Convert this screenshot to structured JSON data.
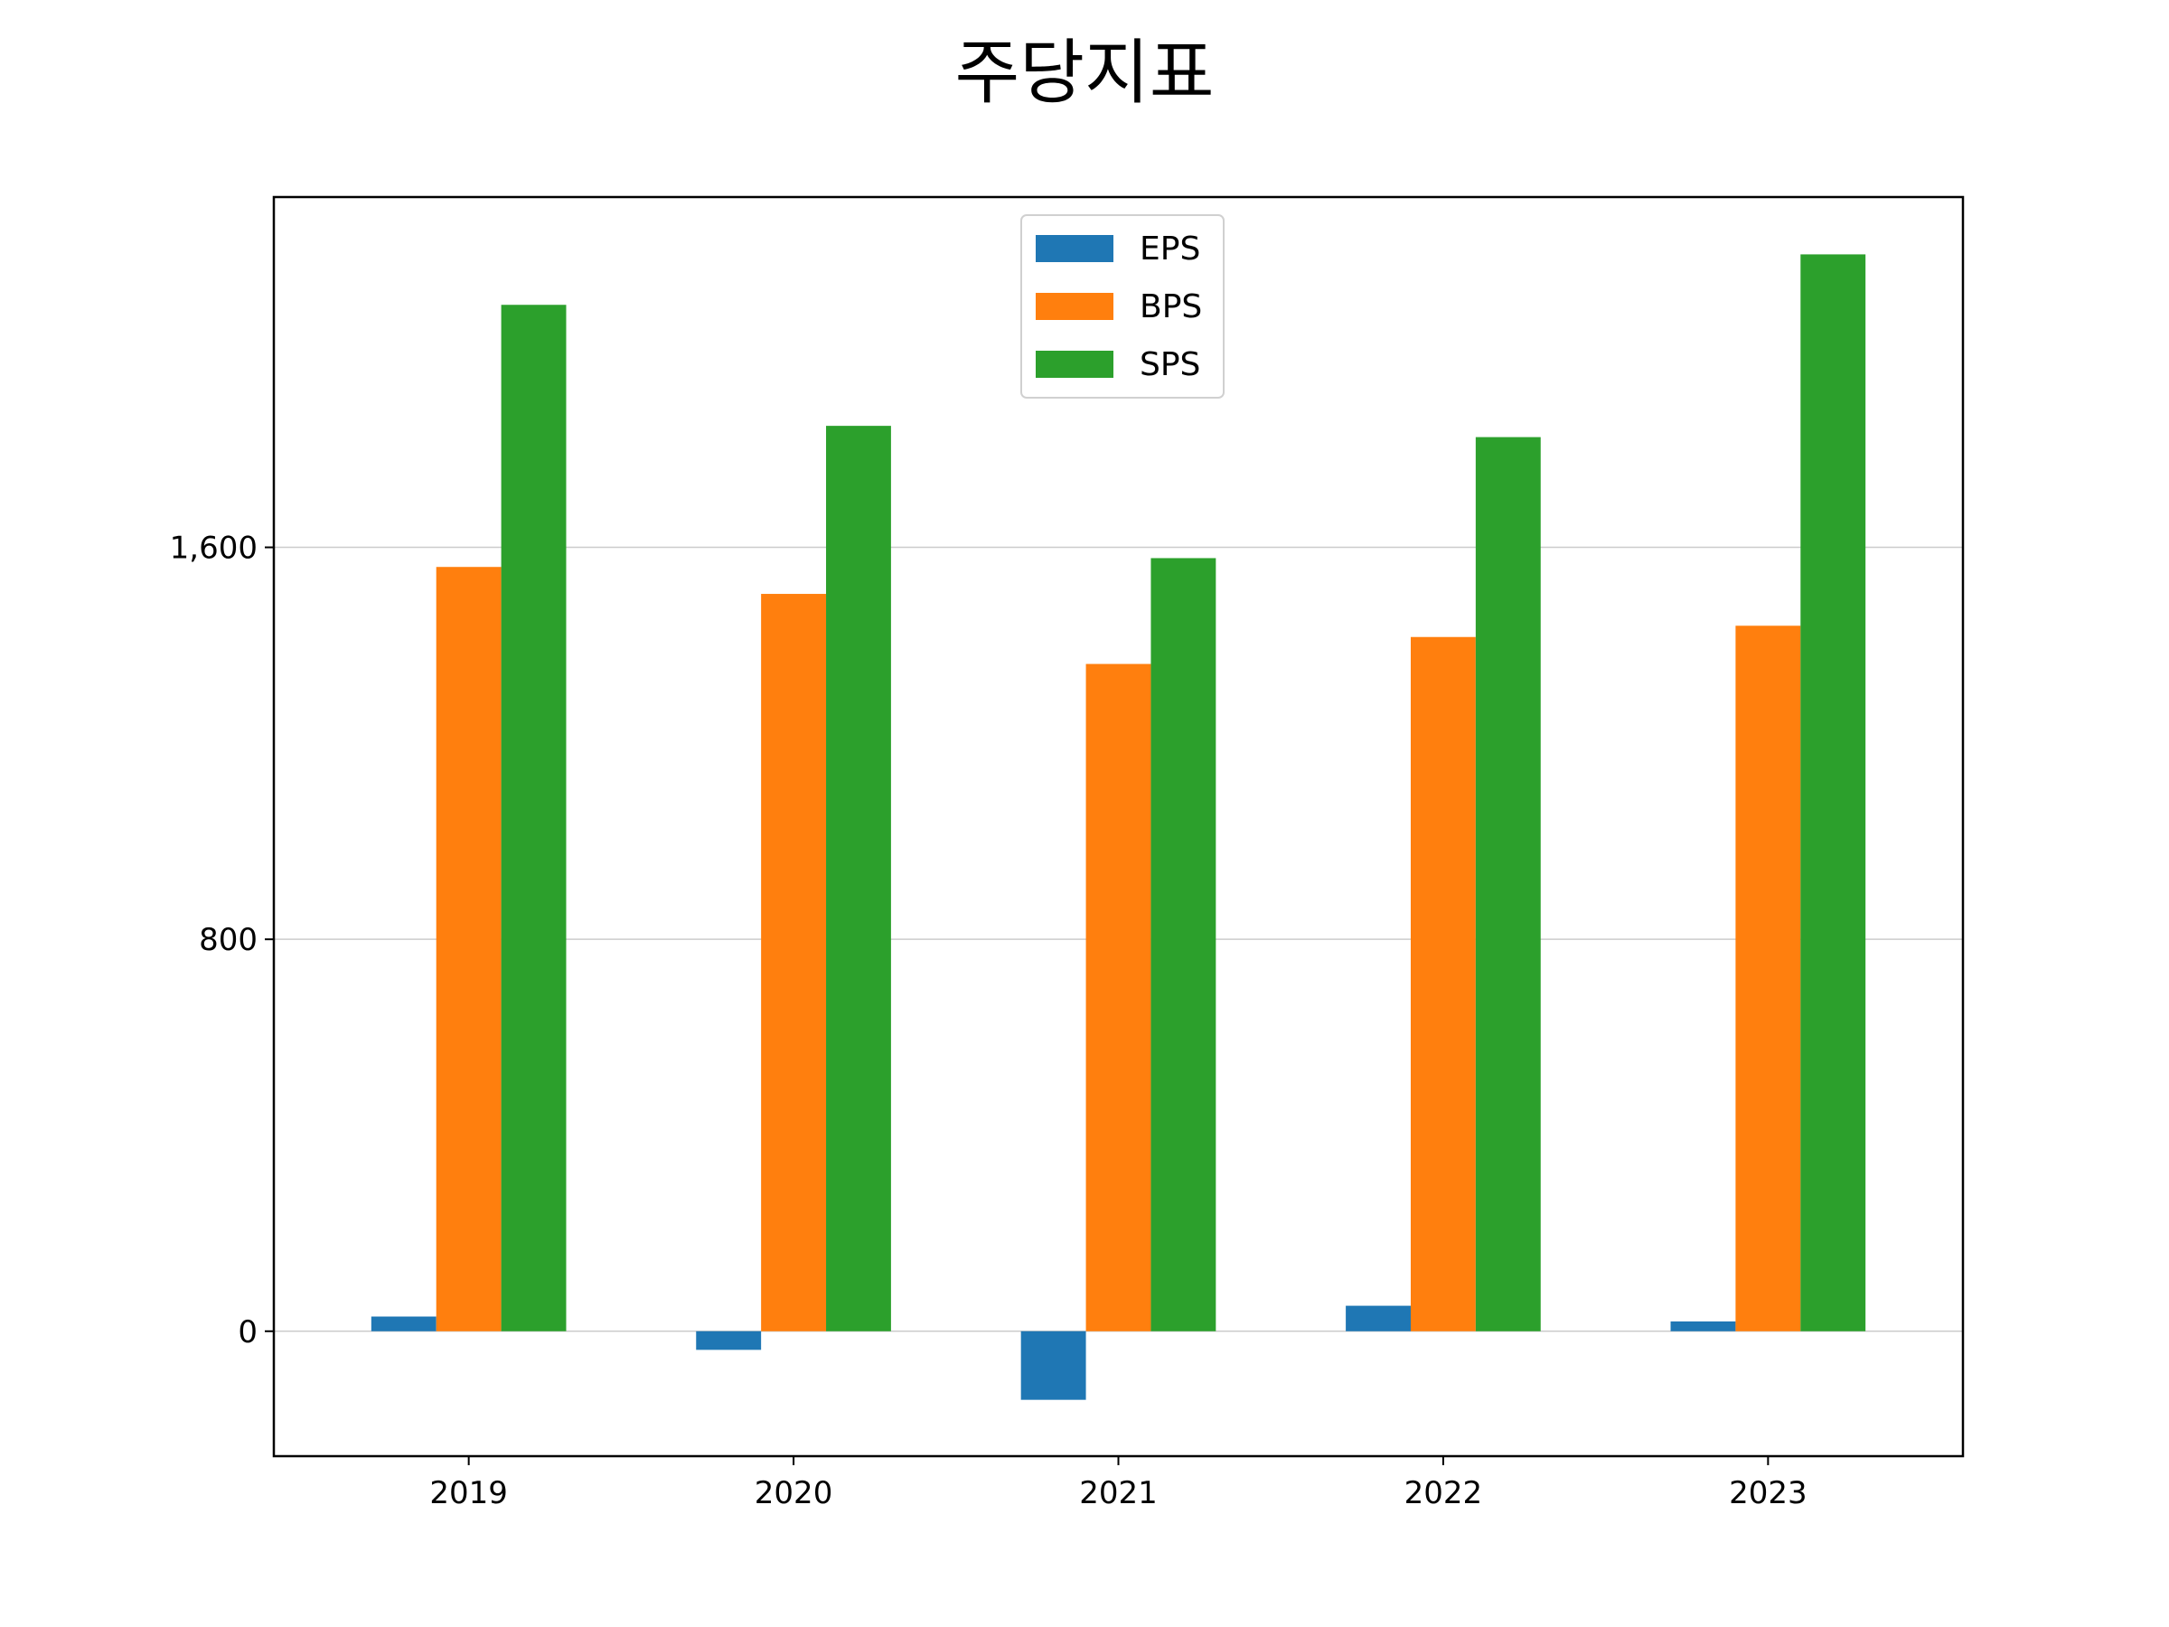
{
  "chart_data": {
    "type": "bar",
    "title": "주당지표",
    "xlabel": "",
    "ylabel": "",
    "categories": [
      "2019",
      "2020",
      "2021",
      "2022",
      "2023"
    ],
    "series": [
      {
        "name": "EPS",
        "color": "#1f77b4",
        "values": [
          30,
          -38,
          -140,
          52,
          20
        ]
      },
      {
        "name": "BPS",
        "color": "#ff7f0e",
        "values": [
          1560,
          1505,
          1362,
          1417,
          1440
        ]
      },
      {
        "name": "SPS",
        "color": "#2ca02c",
        "values": [
          2095,
          1848,
          1578,
          1825,
          2198
        ]
      }
    ],
    "yticks": [
      0,
      800,
      1600
    ],
    "ytick_labels": [
      "0",
      "800",
      "1,600"
    ],
    "ylim": [
      -255,
      2315
    ],
    "grid": "y",
    "legend_position": "top-center"
  }
}
